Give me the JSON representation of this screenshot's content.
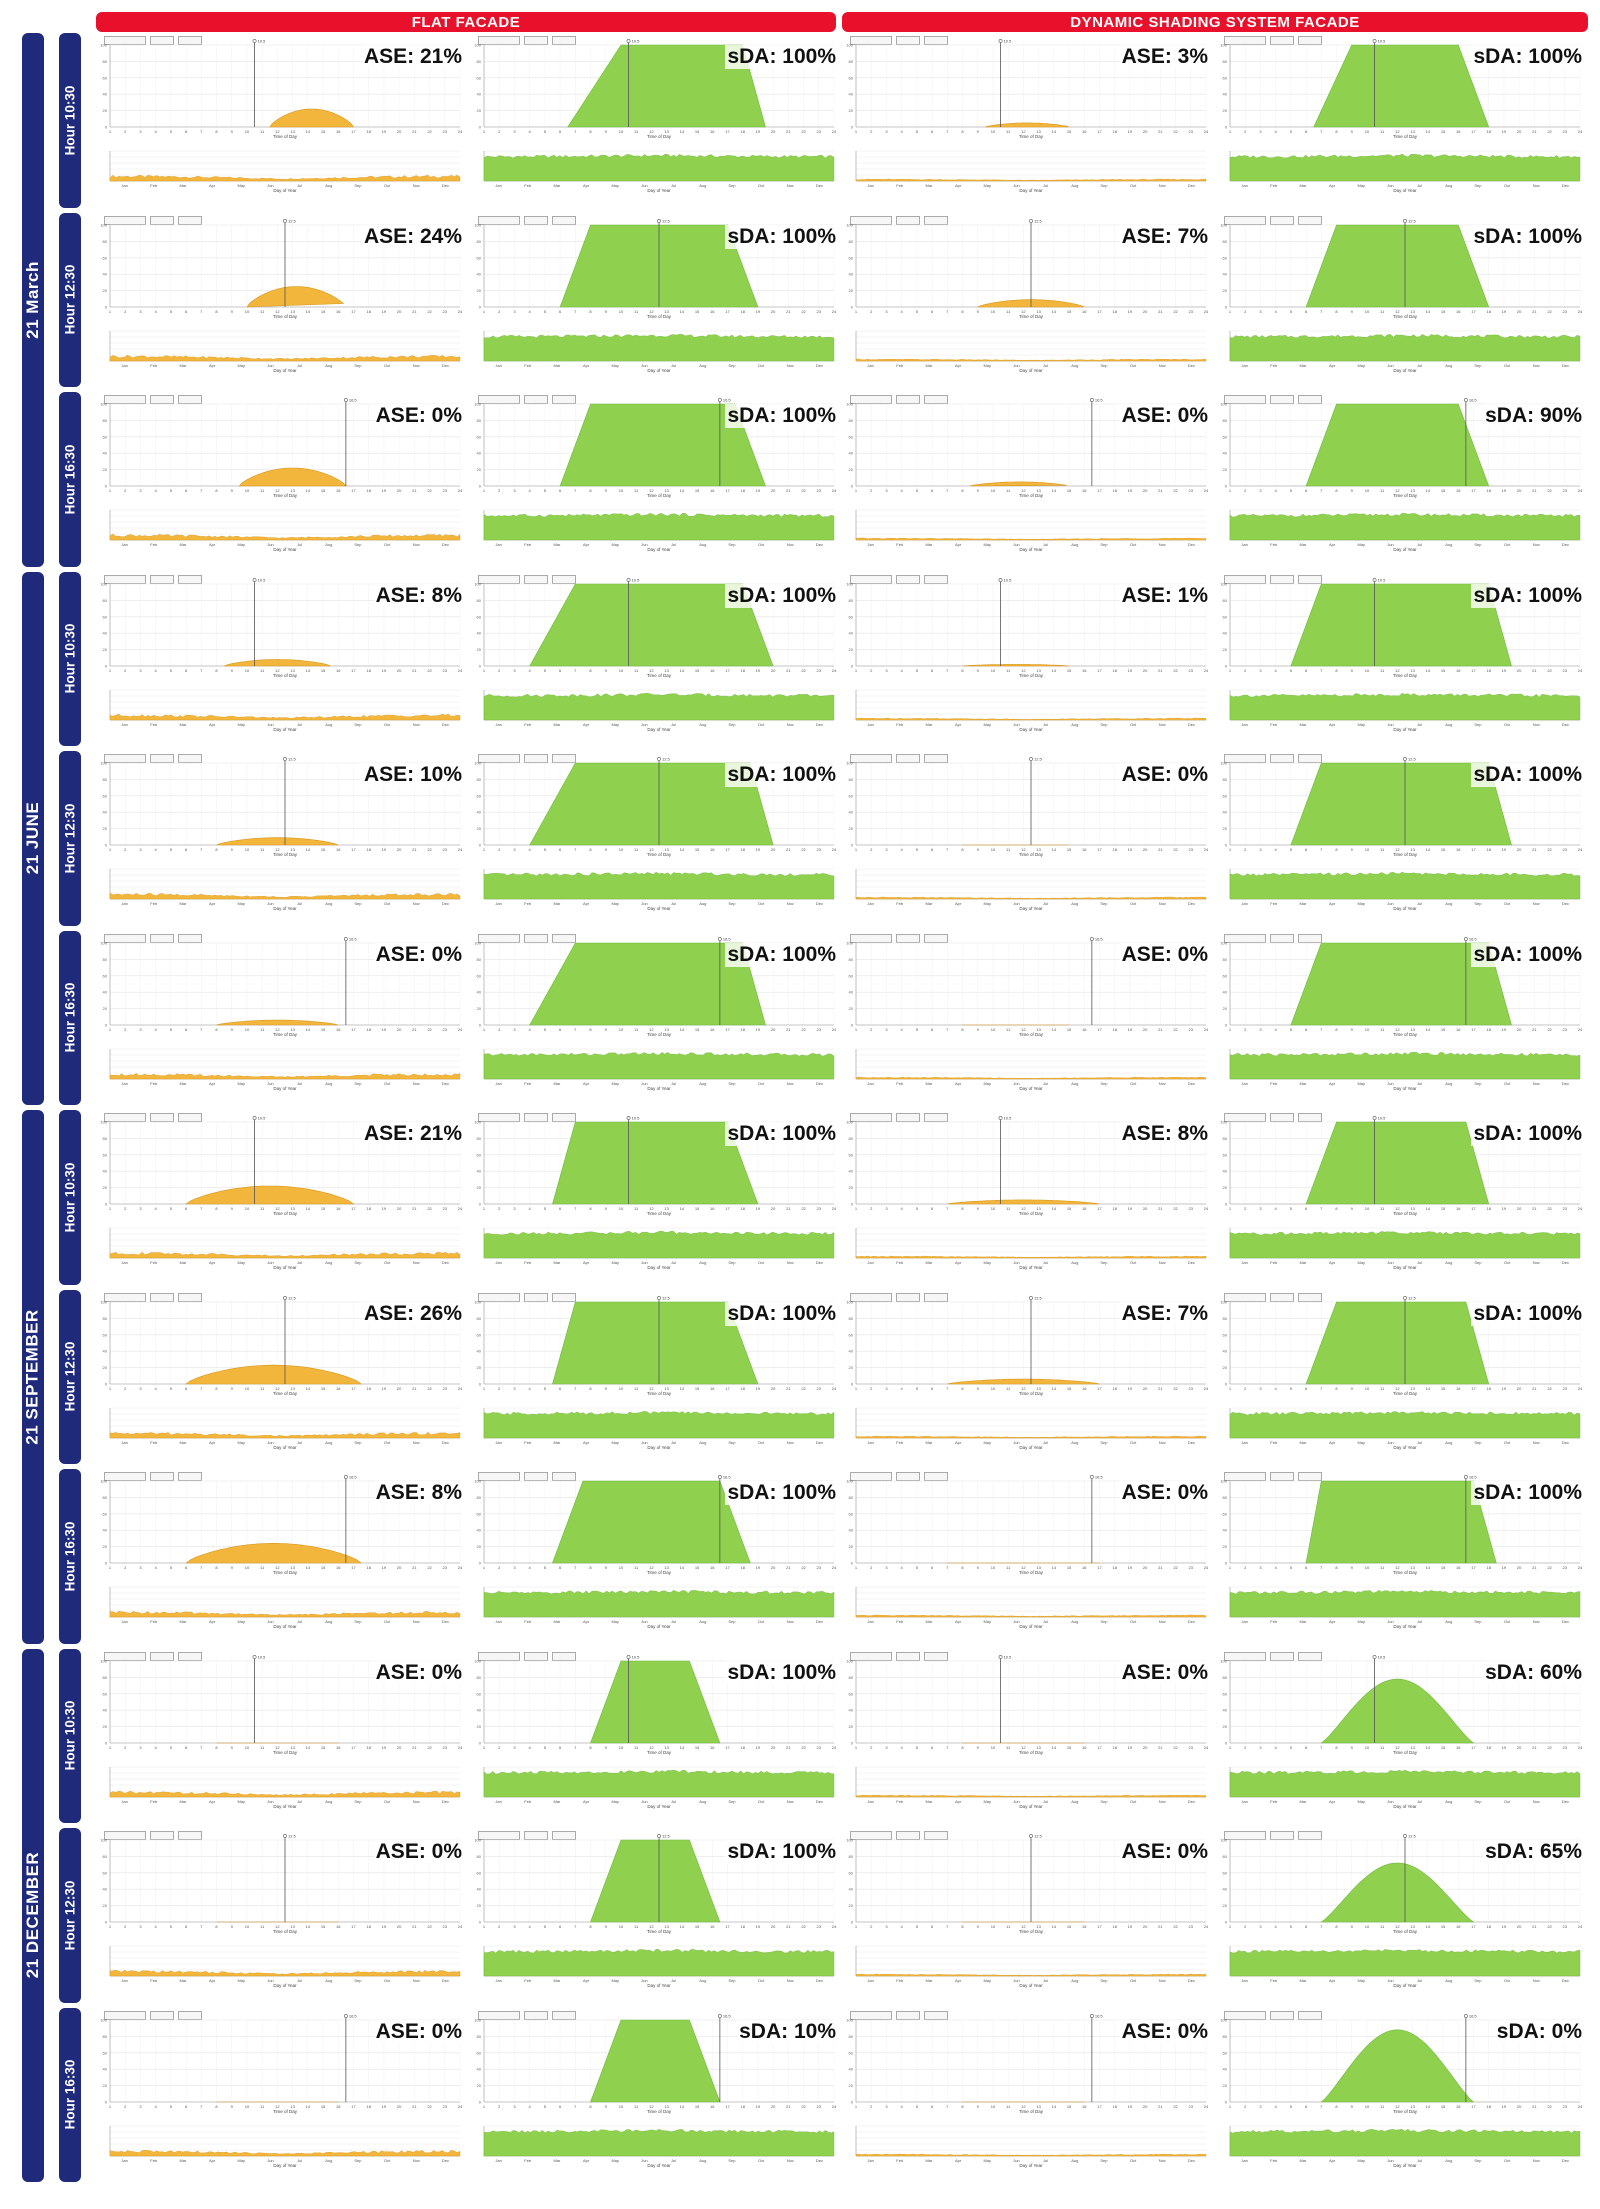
{
  "columns": {
    "flat": "FLAT FACADE",
    "dynamic": "DYNAMIC SHADING SYSTEM FACADE"
  },
  "seasons": [
    {
      "label": "21 March",
      "hours": [
        "Hour 10:30",
        "Hour 12:30",
        "Hour 16:30"
      ]
    },
    {
      "label": "21 JUNE",
      "hours": [
        "Hour 10:30",
        "Hour 12:30",
        "Hour 16:30"
      ]
    },
    {
      "label": "21 SEPTEMBER",
      "hours": [
        "Hour 10:30",
        "Hour 12:30",
        "Hour 16:30"
      ]
    },
    {
      "label": "21 DECEMBER",
      "hours": [
        "Hour 10:30",
        "Hour 12:30",
        "Hour 16:30"
      ]
    }
  ],
  "colors": {
    "header": "#e8102a",
    "navy": "#1f2a7a",
    "ase": "#f2b63c",
    "sda": "#8fd14f"
  },
  "chart_data": {
    "type": "area",
    "x_daily": [
      1,
      2,
      3,
      4,
      5,
      6,
      7,
      8,
      9,
      10,
      11,
      12,
      13,
      14,
      15,
      16,
      17,
      18,
      19,
      20,
      21,
      22,
      23,
      24
    ],
    "xlabel_daily": "Time of Day",
    "months": [
      "Jan",
      "Feb",
      "Mar",
      "Apr",
      "May",
      "Jun",
      "Jul",
      "Aug",
      "Sep",
      "Oct",
      "Nov",
      "Dec"
    ],
    "xlabel_annual": "Day of Year",
    "ylim": [
      0,
      100
    ],
    "rows": [
      {
        "season": "21 March",
        "hour": "Hour 10:30",
        "time": "10.5",
        "flat_ase": "ASE: 21%",
        "flat_sda": "sDA: 100%",
        "dyn_ase": "ASE: 3%",
        "dyn_sda": "sDA: 100%",
        "curves": {
          "flat_ase": [
            11.5,
            17,
            22
          ],
          "flat_sda": [
            6.5,
            10,
            18,
            19.5
          ],
          "dyn_ase": [
            9.5,
            15,
            5
          ],
          "dyn_sda": [
            6.5,
            9,
            16,
            18
          ]
        }
      },
      {
        "season": "21 March",
        "hour": "Hour 12:30",
        "time": "12.5",
        "flat_ase": "ASE: 24%",
        "flat_sda": "sDA: 100%",
        "dyn_ase": "ASE: 7%",
        "dyn_sda": "sDA: 100%",
        "curves": {
          "flat_ase": [
            10,
            16.5,
            25
          ],
          "flat_sda": [
            6,
            8,
            17,
            19
          ],
          "dyn_ase": [
            9,
            16,
            9
          ],
          "dyn_sda": [
            6,
            8,
            16,
            18
          ]
        }
      },
      {
        "season": "21 March",
        "hour": "Hour 16:30",
        "time": "16.5",
        "flat_ase": "ASE: 0%",
        "flat_sda": "sDA: 100%",
        "dyn_ase": "ASE: 0%",
        "dyn_sda": "sDA: 90%",
        "curves": {
          "flat_ase": [
            9.5,
            16.5,
            22
          ],
          "flat_sda": [
            6,
            8,
            17.5,
            19.5
          ],
          "dyn_ase": [
            8.5,
            15,
            5
          ],
          "dyn_sda": [
            6,
            8,
            16,
            18
          ]
        }
      },
      {
        "season": "21 JUNE",
        "hour": "Hour 10:30",
        "time": "10.5",
        "flat_ase": "ASE: 8%",
        "flat_sda": "sDA: 100%",
        "dyn_ase": "ASE: 1%",
        "dyn_sda": "sDA: 100%",
        "curves": {
          "flat_ase": [
            8.5,
            15.5,
            8
          ],
          "flat_sda": [
            4,
            7,
            18,
            20
          ],
          "dyn_ase": [
            8,
            15,
            2
          ],
          "dyn_sda": [
            5,
            7,
            18,
            19.5
          ]
        }
      },
      {
        "season": "21 JUNE",
        "hour": "Hour 12:30",
        "time": "12.5",
        "flat_ase": "ASE: 10%",
        "flat_sda": "sDA: 100%",
        "dyn_ase": "ASE: 0%",
        "dyn_sda": "sDA: 100%",
        "curves": {
          "flat_ase": [
            8,
            16,
            9
          ],
          "flat_sda": [
            4,
            7,
            18.5,
            20
          ],
          "dyn_ase": [
            8,
            15,
            0
          ],
          "dyn_sda": [
            5,
            7,
            18,
            19.5
          ]
        }
      },
      {
        "season": "21 JUNE",
        "hour": "Hour 16:30",
        "time": "16.5",
        "flat_ase": "ASE: 0%",
        "flat_sda": "sDA: 100%",
        "dyn_ase": "ASE: 0%",
        "dyn_sda": "sDA: 100%",
        "curves": {
          "flat_ase": [
            8,
            16,
            6
          ],
          "flat_sda": [
            4,
            7,
            18,
            19.5
          ],
          "dyn_ase": [
            8,
            15,
            0
          ],
          "dyn_sda": [
            5,
            7,
            18,
            19.5
          ]
        }
      },
      {
        "season": "21 SEPTEMBER",
        "hour": "Hour 10:30",
        "time": "10.5",
        "flat_ase": "ASE: 21%",
        "flat_sda": "sDA: 100%",
        "dyn_ase": "ASE: 8%",
        "dyn_sda": "sDA: 100%",
        "curves": {
          "flat_ase": [
            6,
            17,
            22
          ],
          "flat_sda": [
            5.5,
            7,
            17,
            19
          ],
          "dyn_ase": [
            7,
            17,
            5
          ],
          "dyn_sda": [
            6,
            8,
            16.5,
            18
          ]
        }
      },
      {
        "season": "21 SEPTEMBER",
        "hour": "Hour 12:30",
        "time": "12.5",
        "flat_ase": "ASE: 26%",
        "flat_sda": "sDA: 100%",
        "dyn_ase": "ASE: 7%",
        "dyn_sda": "sDA: 100%",
        "curves": {
          "flat_ase": [
            6,
            17.5,
            23
          ],
          "flat_sda": [
            5.5,
            7,
            17,
            19
          ],
          "dyn_ase": [
            7,
            17,
            6
          ],
          "dyn_sda": [
            6,
            8,
            16.5,
            18
          ]
        }
      },
      {
        "season": "21 SEPTEMBER",
        "hour": "Hour 16:30",
        "time": "16.5",
        "flat_ase": "ASE: 8%",
        "flat_sda": "sDA: 100%",
        "dyn_ase": "ASE: 0%",
        "dyn_sda": "sDA: 100%",
        "curves": {
          "flat_ase": [
            6,
            17.5,
            24
          ],
          "flat_sda": [
            5.5,
            7.5,
            16.5,
            18.5
          ],
          "dyn_ase": [
            7,
            17,
            0
          ],
          "dyn_sda": [
            6,
            7,
            17,
            18.5
          ]
        }
      },
      {
        "season": "21 DECEMBER",
        "hour": "Hour 10:30",
        "time": "10.5",
        "flat_ase": "ASE: 0%",
        "flat_sda": "sDA: 100%",
        "dyn_ase": "ASE: 0%",
        "dyn_sda": "sDA: 60%",
        "curves": {
          "flat_ase": [
            8,
            16,
            0
          ],
          "flat_sda": [
            8,
            10,
            14.5,
            16.5
          ],
          "dyn_ase": [
            8,
            16,
            0
          ],
          "dyn_sda": [
            7,
            12,
            17,
            78
          ]
        }
      },
      {
        "season": "21 DECEMBER",
        "hour": "Hour 12:30",
        "time": "12.5",
        "flat_ase": "ASE: 0%",
        "flat_sda": "sDA: 100%",
        "dyn_ase": "ASE: 0%",
        "dyn_sda": "sDA: 65%",
        "curves": {
          "flat_ase": [
            8,
            16,
            0
          ],
          "flat_sda": [
            8,
            10,
            14.5,
            16.5
          ],
          "dyn_ase": [
            8,
            16,
            0
          ],
          "dyn_sda": [
            7,
            12,
            17,
            72
          ]
        }
      },
      {
        "season": "21 DECEMBER",
        "hour": "Hour 16:30",
        "time": "16.5",
        "flat_ase": "ASE: 0%",
        "flat_sda": "sDA: 10%",
        "dyn_ase": "ASE: 0%",
        "dyn_sda": "sDA: 0%",
        "curves": {
          "flat_ase": [
            8,
            16,
            0
          ],
          "flat_sda": [
            8,
            10,
            14.5,
            16.5
          ],
          "dyn_ase": [
            8,
            16,
            0
          ],
          "dyn_sda": [
            7,
            12,
            17,
            88
          ]
        }
      }
    ]
  }
}
